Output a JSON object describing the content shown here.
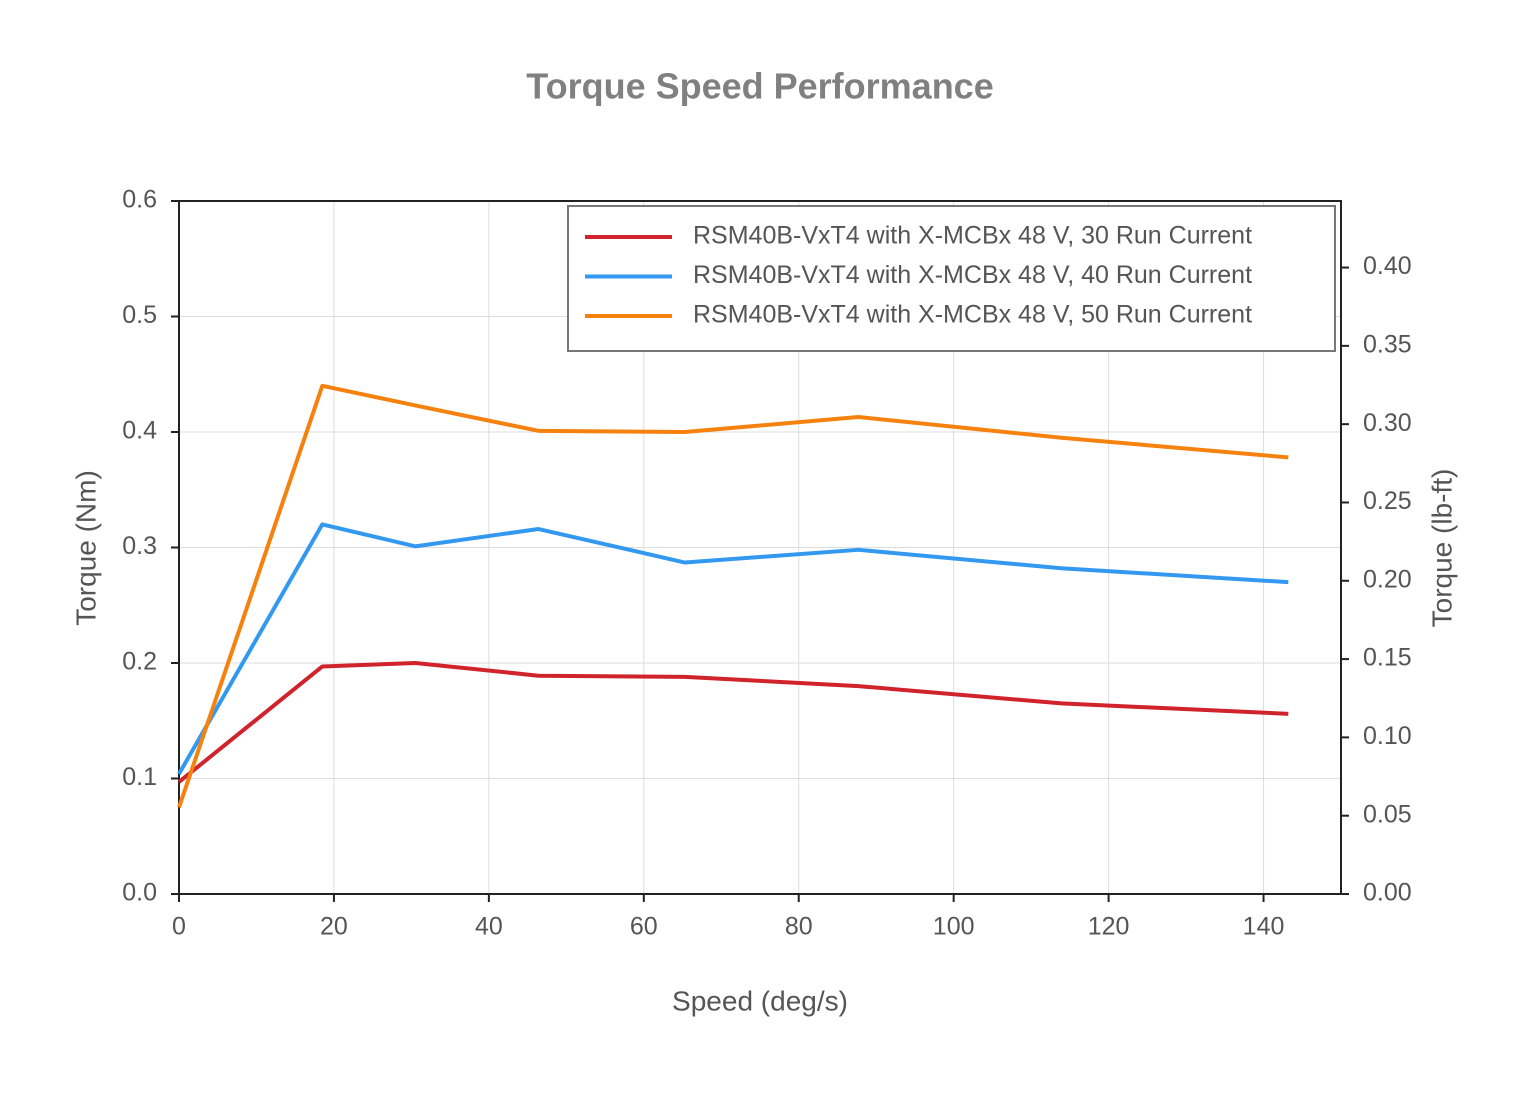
{
  "chart_data": {
    "type": "line",
    "title": "Torque Speed Performance",
    "xlabel": "Speed (deg/s)",
    "ylabel": "Torque (Nm)",
    "y2label": "Torque (lb-ft)",
    "x": [
      0,
      18.5,
      30.5,
      46.4,
      65.3,
      87.7,
      113.9,
      143.2
    ],
    "series": [
      {
        "name": "RSM40B-VxT4 with X-MCBx 48 V, 30 Run Current",
        "color": "#d0232b",
        "values": [
          0.097,
          0.197,
          0.2,
          0.189,
          0.188,
          0.18,
          0.165,
          0.156
        ]
      },
      {
        "name": "RSM40B-VxT4 with X-MCBx 48 V, 40 Run Current",
        "color": "#3399f0",
        "values": [
          0.104,
          0.32,
          0.301,
          0.316,
          0.287,
          0.298,
          0.282,
          0.27
        ]
      },
      {
        "name": "RSM40B-VxT4 with X-MCBx 48 V, 50 Run Current",
        "color": "#f5820f",
        "values": [
          0.075,
          0.44,
          0.423,
          0.401,
          0.4,
          0.413,
          0.395,
          0.378
        ]
      }
    ],
    "xlim": [
      0,
      150
    ],
    "xticks": [
      0,
      20,
      40,
      60,
      80,
      100,
      120,
      140
    ],
    "ylim": [
      0,
      0.6
    ],
    "yticks": [
      {
        "value": 0,
        "label": "0.0"
      },
      0.1,
      0.2,
      0.3,
      0.4,
      0.5,
      0.6
    ],
    "y2lim": [
      0,
      0.4425
    ],
    "y2ticks": [
      {
        "value": 0,
        "label": "0.00"
      },
      0.05,
      {
        "value": 0.1,
        "label": "0.10"
      },
      0.15,
      {
        "value": 0.2,
        "label": "0.20"
      },
      0.25,
      {
        "value": 0.3,
        "label": "0.30"
      },
      0.35,
      {
        "value": 0.4,
        "label": "0.40"
      }
    ],
    "grid": true,
    "legend": "upper right"
  }
}
